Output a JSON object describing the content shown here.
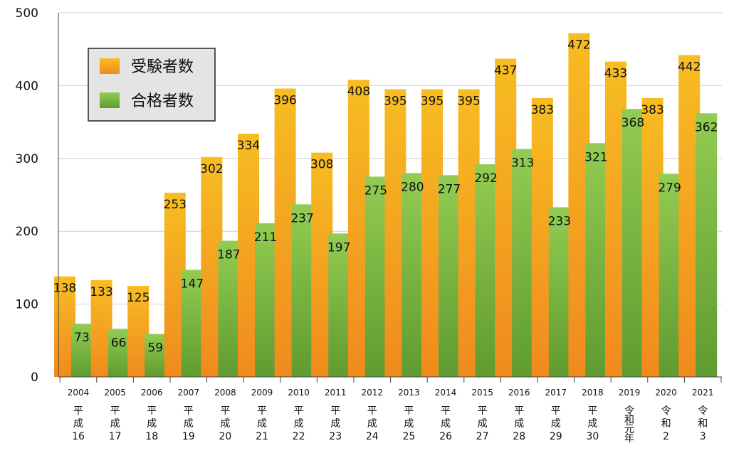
{
  "chart_data": {
    "type": "bar",
    "categories": [
      "2004",
      "2005",
      "2006",
      "2007",
      "2008",
      "2009",
      "2010",
      "2011",
      "2012",
      "2013",
      "2014",
      "2015",
      "2016",
      "2017",
      "2018",
      "2019",
      "2020",
      "2021"
    ],
    "era_labels": [
      [
        "平",
        "成",
        "16"
      ],
      [
        "平",
        "成",
        "17"
      ],
      [
        "平",
        "成",
        "18"
      ],
      [
        "平",
        "成",
        "19"
      ],
      [
        "平",
        "成",
        "20"
      ],
      [
        "平",
        "成",
        "21"
      ],
      [
        "平",
        "成",
        "22"
      ],
      [
        "平",
        "成",
        "23"
      ],
      [
        "平",
        "成",
        "24"
      ],
      [
        "平",
        "成",
        "25"
      ],
      [
        "平",
        "成",
        "26"
      ],
      [
        "平",
        "成",
        "27"
      ],
      [
        "平",
        "成",
        "28"
      ],
      [
        "平",
        "成",
        "29"
      ],
      [
        "平",
        "成",
        "30"
      ],
      [
        "令",
        "和",
        "元",
        "年"
      ],
      [
        "令",
        "和",
        "2"
      ],
      [
        "令",
        "和",
        "3"
      ]
    ],
    "series": [
      {
        "name": "受験者数",
        "color": "#f5a81e",
        "values": [
          138,
          133,
          125,
          253,
          302,
          334,
          396,
          308,
          408,
          395,
          395,
          395,
          437,
          383,
          472,
          433,
          383,
          442
        ]
      },
      {
        "name": "合格者数",
        "color": "#86c046",
        "values": [
          73,
          66,
          59,
          147,
          187,
          211,
          237,
          197,
          275,
          280,
          277,
          292,
          313,
          233,
          321,
          368,
          279,
          362
        ]
      }
    ],
    "ylim": [
      0,
      500
    ],
    "yticks": [
      0,
      100,
      200,
      300,
      400,
      500
    ],
    "xlabel": "",
    "ylabel": "",
    "grid": true,
    "legend_position": "top-left"
  }
}
